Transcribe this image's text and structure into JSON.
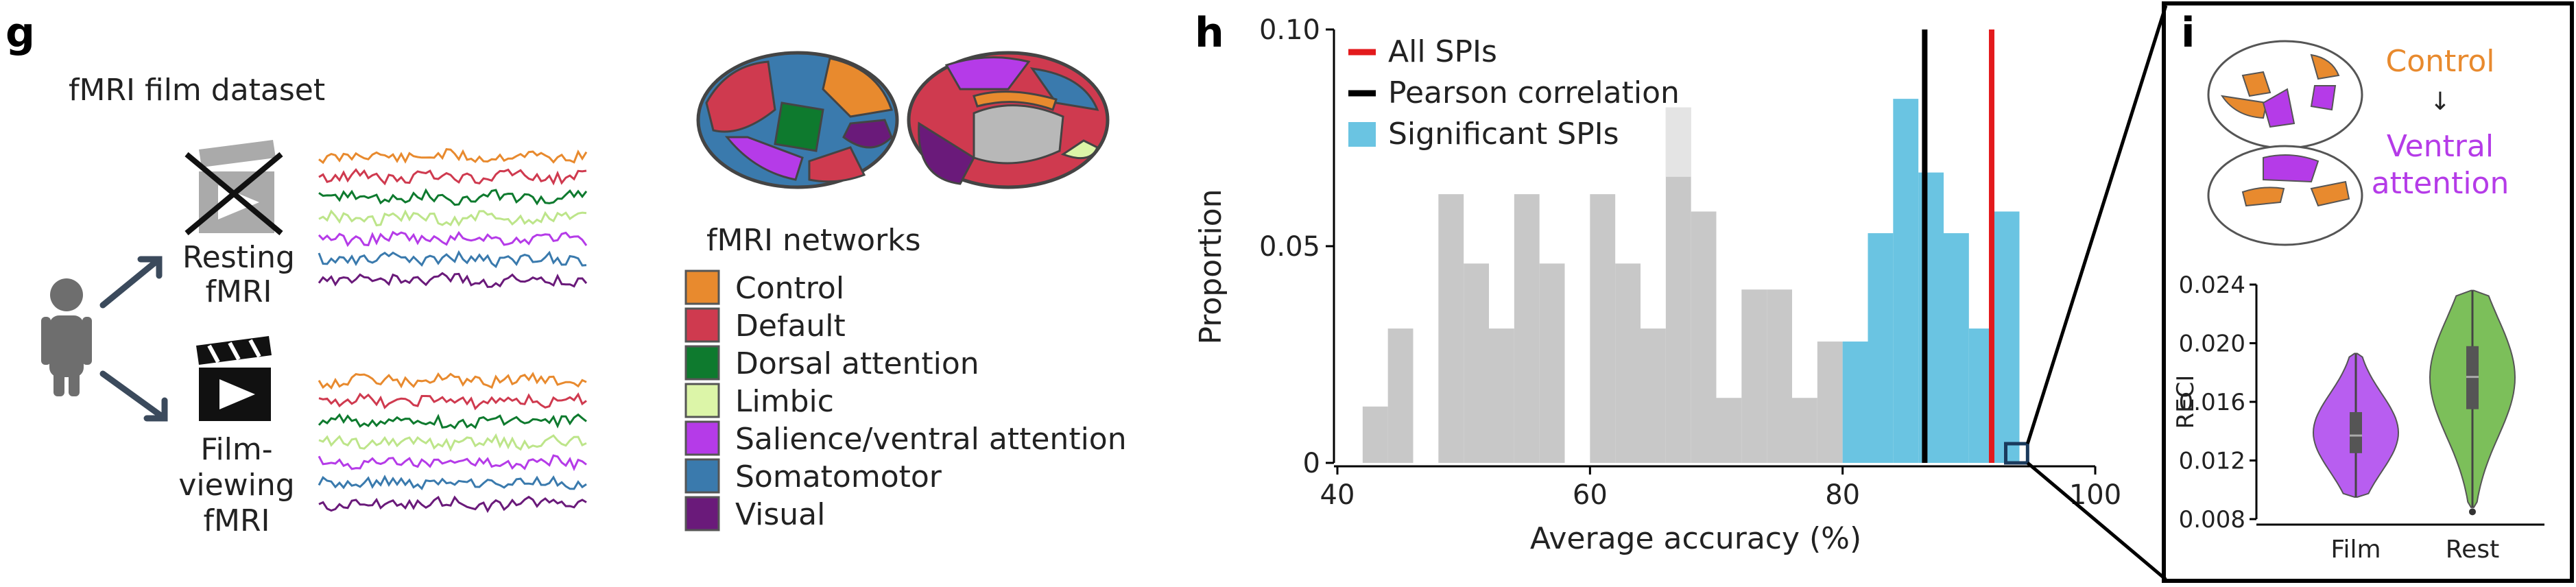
{
  "panel_letters": {
    "g": "g",
    "h": "h",
    "i": "i"
  },
  "panel_g": {
    "dataset_title": "fMRI film dataset",
    "resting_label_1": "Resting",
    "resting_label_2": "fMRI",
    "film_label_1": "Film-",
    "film_label_2": "viewing",
    "film_label_3": "fMRI",
    "networks_title": "fMRI networks",
    "networks": [
      {
        "name": "Control",
        "color": "#e88a2e"
      },
      {
        "name": "Default",
        "color": "#cf3a4f"
      },
      {
        "name": "Dorsal attention",
        "color": "#0e7a2e"
      },
      {
        "name": "Limbic",
        "color": "#dcf5a8"
      },
      {
        "name": "Salience/ventral attention",
        "color": "#b53be8"
      },
      {
        "name": "Somatomotor",
        "color": "#3a7aad"
      },
      {
        "name": "Visual",
        "color": "#6a1a7a"
      }
    ],
    "icons": [
      "person-icon",
      "arrow-icon",
      "projector-crossed-icon",
      "clapperboard-icon",
      "brain-icon"
    ]
  },
  "chart_data": [
    {
      "type": "bar",
      "panel": "h",
      "xlabel": "Average accuracy (%)",
      "ylabel": "Proportion",
      "xlim": [
        40,
        100
      ],
      "ylim": [
        0,
        0.1
      ],
      "xticks": [
        "40",
        "60",
        "80",
        "100"
      ],
      "yticks": [
        "0",
        "0.05",
        "0.10"
      ],
      "bin_width": 2,
      "legend_position": "top-left",
      "legend": [
        {
          "label": "All SPIs",
          "color": "#e31a1c",
          "kind": "line"
        },
        {
          "label": "Pearson correlation",
          "color": "#000000",
          "kind": "line"
        },
        {
          "label": "Significant SPIs",
          "color": "#6ac4e2",
          "kind": "patch"
        }
      ],
      "series": [
        {
          "name": "All SPIs",
          "color": "#c8c8c8",
          "bins": [
            [
              42,
              0.013
            ],
            [
              44,
              0.031
            ],
            [
              46,
              0
            ],
            [
              48,
              0.062
            ],
            [
              50,
              0.046
            ],
            [
              52,
              0.031
            ],
            [
              54,
              0.062
            ],
            [
              56,
              0.046
            ],
            [
              58,
              0
            ],
            [
              60,
              0.062
            ],
            [
              62,
              0.046
            ],
            [
              64,
              0.031
            ],
            [
              66,
              0.082
            ],
            [
              68,
              0.058
            ],
            [
              70,
              0.015
            ],
            [
              72,
              0.04
            ],
            [
              74,
              0.04
            ],
            [
              76,
              0.015
            ],
            [
              78,
              0.028
            ],
            [
              80,
              0
            ],
            [
              82,
              0
            ],
            [
              84,
              0
            ],
            [
              86,
              0
            ],
            [
              88,
              0
            ],
            [
              90,
              0
            ],
            [
              92,
              0
            ],
            [
              94,
              0
            ]
          ]
        },
        {
          "name": "Significant SPIs",
          "color": "#6ac4e2",
          "bins": [
            [
              66,
              0
            ],
            [
              80,
              0.028
            ],
            [
              82,
              0.053
            ],
            [
              84,
              0.084
            ],
            [
              86,
              0.067
            ],
            [
              88,
              0.053
            ],
            [
              90,
              0.031
            ],
            [
              92,
              0.058
            ]
          ]
        }
      ],
      "vlines": [
        {
          "name": "Pearson correlation",
          "x": 86.5,
          "color": "#000000"
        },
        {
          "name": "All SPIs",
          "x": 91.8,
          "color": "#e31a1c"
        }
      ],
      "highlight_box_x": [
        94,
        96
      ]
    },
    {
      "type": "violin",
      "panel": "i",
      "ylabel": "RECI",
      "ylim": [
        0.008,
        0.024
      ],
      "yticks": [
        "0.024",
        "0.020",
        "0.016",
        "0.012",
        "0.008"
      ],
      "categories": [
        "Film",
        "Rest"
      ],
      "series": [
        {
          "name": "Film",
          "color": "#b85ef0",
          "min": 0.0095,
          "q1": 0.0125,
          "median": 0.0137,
          "q3": 0.0153,
          "max": 0.0193
        },
        {
          "name": "Rest",
          "color": "#7cbf5a",
          "min": 0.0088,
          "q1": 0.0155,
          "median": 0.0177,
          "q3": 0.0198,
          "max": 0.0236
        }
      ],
      "transition": {
        "from": "Control",
        "arrow": "↓",
        "to_1": "Ventral",
        "to_2": "attention",
        "from_color": "#e88a2e",
        "to_color": "#b53be8"
      }
    }
  ]
}
